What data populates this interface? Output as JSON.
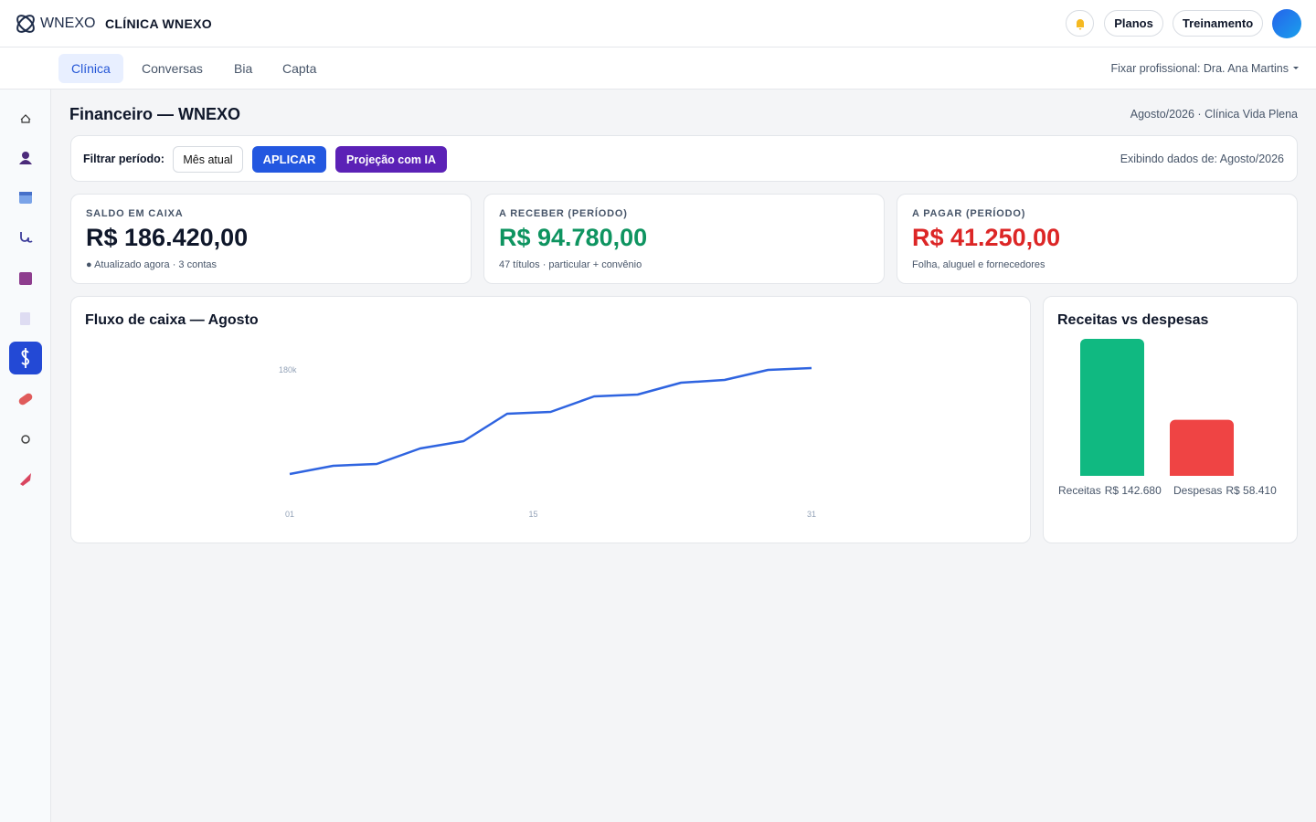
{
  "header": {
    "brand": "WNEXO",
    "clinic": "CLÍNICA WNEXO",
    "buttons": [
      "Planos",
      "Treinamento"
    ]
  },
  "tabs": [
    "Clínica",
    "Conversas",
    "Bia",
    "Capta"
  ],
  "pin_professional": "Fixar profissional: Dra. Ana Martins",
  "page": {
    "title": "Financeiro — WNEXO",
    "context": "Agosto/2026 · Clínica Vida Plena"
  },
  "filter": {
    "label": "Filtrar período:",
    "period": "Mês atual",
    "apply": "APLICAR",
    "ai": "Projeção com IA",
    "showing": "Exibindo dados de: Agosto/2026"
  },
  "kpis": [
    {
      "label": "SALDO EM CAIXA",
      "value": "R$ 186.420,00",
      "note": "● Atualizado agora · 3 contas"
    },
    {
      "label": "A RECEBER (PERÍODO)",
      "value": "R$ 94.780,00",
      "note": "47 títulos · particular + convênio"
    },
    {
      "label": "A PAGAR (PERÍODO)",
      "value": "R$ 41.250,00",
      "note": "Folha, aluguel e fornecedores"
    }
  ],
  "cashflow_chart": {
    "type": "line",
    "title": "Fluxo de caixa — Agosto",
    "x": [
      1,
      3.5,
      6,
      8.5,
      11,
      13.5,
      16,
      18.5,
      21,
      23.5,
      26,
      28.5,
      31
    ],
    "series": [
      {
        "color": "#2f64e0",
        "values": [
          134400,
          138000,
          138800,
          145600,
          148800,
          160800,
          161600,
          168400,
          169200,
          174400,
          175600,
          180000,
          180800
        ]
      }
    ],
    "xlim": [
      1,
      31
    ],
    "xticks": [
      {
        "value": 1,
        "label": "01"
      },
      {
        "value": 15,
        "label": "15"
      },
      {
        "value": 31,
        "label": "31"
      }
    ],
    "ylim": [
      120000,
      190000
    ],
    "yticks": [
      {
        "value": 180000,
        "label": "180k"
      }
    ]
  },
  "comparison_chart": {
    "type": "bar",
    "title": "Receitas vs despesas",
    "categories": [
      "Receitas",
      "Despesas"
    ],
    "values": [
      142680,
      58410
    ],
    "value_labels": [
      "R$ 142.680",
      "R$ 58.410"
    ],
    "colors": [
      "#10b981",
      "#ef4444"
    ]
  }
}
